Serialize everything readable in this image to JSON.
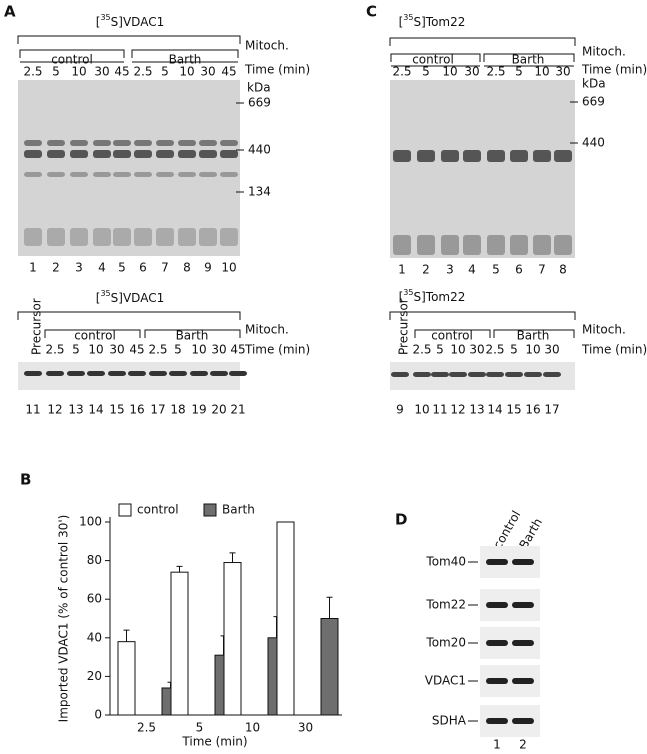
{
  "chart_data": {
    "type": "bar",
    "panel": "B",
    "y_label": "Imported VDAC1 (% of control 30')",
    "x_label": "Time (min)",
    "categories": [
      "2.5",
      "5",
      "10",
      "30"
    ],
    "series": [
      {
        "name": "control",
        "color": "#ffffff",
        "values": [
          38,
          74,
          79,
          100
        ],
        "errors": [
          6,
          3,
          5,
          0
        ]
      },
      {
        "name": "Barth",
        "color": "#6e6e6e",
        "values": [
          14,
          31,
          40,
          50
        ],
        "errors": [
          3,
          10,
          11,
          11
        ]
      }
    ],
    "ylim": [
      0,
      100
    ],
    "yticks": [
      0,
      20,
      40,
      60,
      80,
      100
    ]
  },
  "panel_a": {
    "letter": "A",
    "upper": {
      "title": [
        "[",
        "35",
        "S]VDAC1"
      ],
      "groups": [
        "control",
        "Barth"
      ],
      "mitoch": "Mitoch.",
      "time": "Time (min)",
      "times": [
        "2.5",
        "5",
        "10",
        "30",
        "45",
        "2.5",
        "5",
        "10",
        "30",
        "45"
      ],
      "lanes": [
        "1",
        "2",
        "3",
        "4",
        "5",
        "6",
        "7",
        "8",
        "9",
        "10"
      ],
      "kda": "kDa",
      "markers": [
        "669",
        "440",
        "134"
      ]
    },
    "lower": {
      "title": [
        "[",
        "35",
        "S]VDAC1"
      ],
      "precursor": "Precursor",
      "groups": [
        "control",
        "Barth"
      ],
      "mitoch": "Mitoch.",
      "time": "Time (min)",
      "times": [
        "2.5",
        "5",
        "10",
        "30",
        "45",
        "2.5",
        "5",
        "10",
        "30",
        "45"
      ],
      "lanes": [
        "11",
        "12",
        "13",
        "14",
        "15",
        "16",
        "17",
        "18",
        "19",
        "20",
        "21"
      ]
    }
  },
  "panel_c": {
    "letter": "C",
    "upper": {
      "title": [
        "[",
        "35",
        "S]Tom22"
      ],
      "groups": [
        "control",
        "Barth"
      ],
      "mitoch": "Mitoch.",
      "time": "Time (min)",
      "times": [
        "2.5",
        "5",
        "10",
        "30",
        "2.5",
        "5",
        "10",
        "30"
      ],
      "lanes": [
        "1",
        "2",
        "3",
        "4",
        "5",
        "6",
        "7",
        "8"
      ],
      "kda": "kDa",
      "markers": [
        "669",
        "440"
      ]
    },
    "lower": {
      "title": [
        "[",
        "35",
        "S]Tom22"
      ],
      "precursor": "Precursor",
      "groups": [
        "control",
        "Barth"
      ],
      "mitoch": "Mitoch.",
      "time": "Time (min)",
      "times": [
        "2.5",
        "5",
        "10",
        "30",
        "2.5",
        "5",
        "10",
        "30"
      ],
      "lanes": [
        "9",
        "10",
        "11",
        "12",
        "13",
        "14",
        "15",
        "16",
        "17"
      ]
    }
  },
  "panel_d": {
    "letter": "D",
    "columns": [
      "control",
      "Barth"
    ],
    "rows": [
      "Tom40",
      "Tom22",
      "Tom20",
      "VDAC1",
      "SDHA"
    ],
    "lanes": [
      "1",
      "2"
    ]
  }
}
